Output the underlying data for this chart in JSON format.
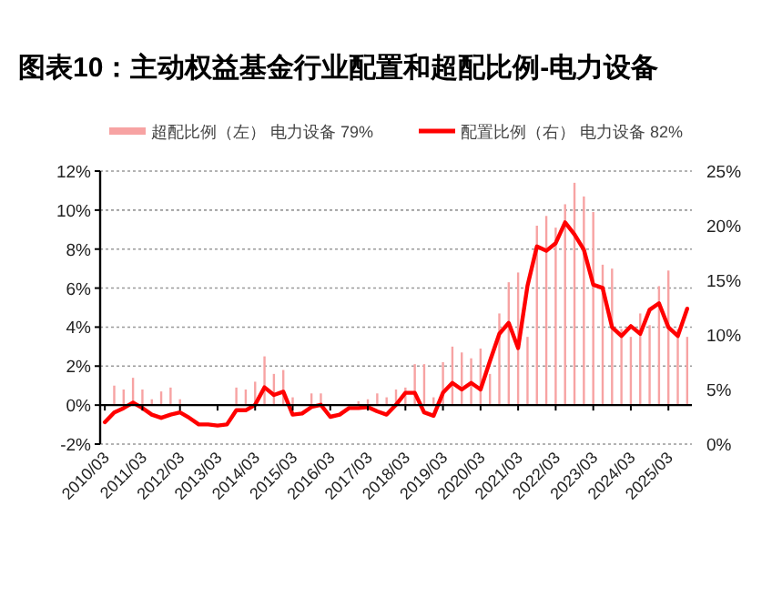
{
  "chart_data": {
    "type": "bar",
    "title": "图表10：主动权益基金行业配置和超配比例-电力设备",
    "categories": [
      "2010/03",
      null,
      null,
      null,
      "2011/03",
      null,
      null,
      null,
      "2012/03",
      null,
      null,
      null,
      "2013/03",
      null,
      null,
      null,
      "2014/03",
      null,
      null,
      null,
      "2015/03",
      null,
      null,
      null,
      "2016/03",
      null,
      null,
      null,
      "2017/03",
      null,
      null,
      null,
      "2018/03",
      null,
      null,
      null,
      "2019/03",
      null,
      null,
      null,
      "2020/03",
      null,
      null,
      null,
      "2021/03",
      null,
      null,
      null,
      "2022/03",
      null,
      null,
      null,
      "2023/03",
      null,
      null,
      null,
      "2024/03",
      null,
      null,
      null,
      "2025/03",
      null,
      null
    ],
    "series": [
      {
        "name": "超配比例（左） 电力设备 79%",
        "axis": "y",
        "color": "#f7a3a3",
        "values": [
          null,
          1.0,
          0.8,
          1.4,
          0.8,
          0.3,
          0.7,
          0.9,
          0.3,
          null,
          null,
          null,
          null,
          null,
          0.9,
          0.8,
          1.2,
          2.5,
          1.6,
          1.8,
          0.4,
          null,
          0.6,
          0.6,
          null,
          null,
          null,
          0.2,
          0.3,
          0.6,
          0.4,
          0.8,
          0.9,
          2.1,
          2.1,
          0.4,
          2.2,
          3.0,
          2.7,
          2.4,
          2.9,
          1.6,
          4.7,
          6.3,
          6.8,
          3.5,
          9.2,
          9.7,
          9.1,
          10.3,
          11.4,
          10.7,
          9.9,
          7.2,
          7.0,
          3.9,
          3.5,
          4.7,
          4.1,
          6.1,
          6.9,
          3.9,
          3.5
        ]
      },
      {
        "name": "配置比例（右） 电力设备 82%",
        "type": "line",
        "axis": "y2",
        "color": "#ff0000",
        "values": [
          2.0,
          2.9,
          3.3,
          3.8,
          3.3,
          2.7,
          2.4,
          2.7,
          2.9,
          2.4,
          1.8,
          1.8,
          1.7,
          1.8,
          3.1,
          3.1,
          3.6,
          5.2,
          4.5,
          4.8,
          2.7,
          2.8,
          3.4,
          3.6,
          2.5,
          2.7,
          3.3,
          3.3,
          3.4,
          3.0,
          2.7,
          3.6,
          4.7,
          4.7,
          2.9,
          2.6,
          4.7,
          5.6,
          5.0,
          5.6,
          5.0,
          7.6,
          10.1,
          11.1,
          8.8,
          14.5,
          18.1,
          17.7,
          18.4,
          20.3,
          19.2,
          17.8,
          14.6,
          14.3,
          10.7,
          9.9,
          10.8,
          10.1,
          12.3,
          12.9,
          10.7,
          9.9,
          12.4
        ]
      }
    ],
    "ylim": [
      -2,
      12
    ],
    "yticks": [
      {
        "value": -2,
        "label": "-2%"
      },
      {
        "value": 0,
        "label": "0%"
      },
      {
        "value": 2,
        "label": "2%"
      },
      {
        "value": 4,
        "label": "4%"
      },
      {
        "value": 6,
        "label": "6%"
      },
      {
        "value": 8,
        "label": "8%"
      },
      {
        "value": 10,
        "label": "10%"
      },
      {
        "value": 12,
        "label": "12%"
      }
    ],
    "y2lim": [
      0,
      25
    ],
    "y2ticks": [
      {
        "value": 0,
        "label": "0%"
      },
      {
        "value": 5,
        "label": "5%"
      },
      {
        "value": 10,
        "label": "10%"
      },
      {
        "value": 15,
        "label": "15%"
      },
      {
        "value": 20,
        "label": "20%"
      },
      {
        "value": 25,
        "label": "25%"
      }
    ],
    "grid": "y",
    "legend": "top"
  }
}
